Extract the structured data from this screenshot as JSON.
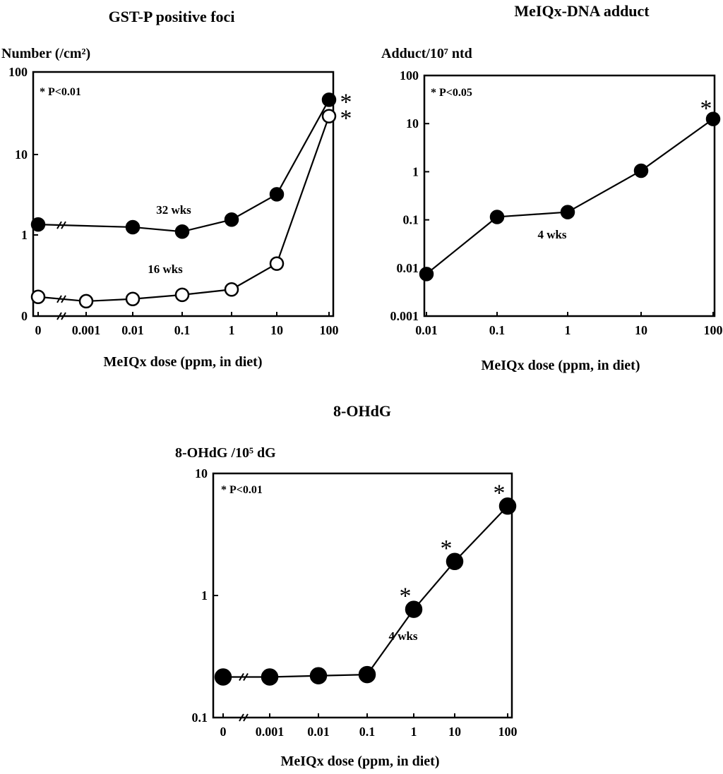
{
  "chart_data": [
    {
      "type": "line",
      "title": "GST-P positive foci",
      "ylabel": "Number (/cm²)",
      "xlabel": "MeIQx dose (ppm, in diet)",
      "yscale": "log",
      "x_tick_labels": [
        "0",
        "0.001",
        "0.01",
        "0.1",
        "1",
        "10",
        "100"
      ],
      "y_tick_labels": [
        "0",
        "1",
        "10",
        "100"
      ],
      "annotation": "* P<0.01",
      "axis_break": true,
      "x": [
        "0",
        "0.001",
        "0.01",
        "0.1",
        "1",
        "10",
        "100"
      ],
      "series": [
        {
          "name": "32 wks",
          "marker": "filled circle",
          "x": [
            "0",
            "0.01",
            "0.1",
            "1",
            "10",
            "100"
          ],
          "values": [
            1.35,
            1.25,
            1.1,
            1.55,
            3.2,
            48
          ],
          "significant": [
            false,
            false,
            false,
            false,
            false,
            true
          ]
        },
        {
          "name": "16 wks",
          "marker": "open circle",
          "x": [
            "0",
            "0.001",
            "0.01",
            "0.1",
            "1",
            "10",
            "100"
          ],
          "values": [
            0.17,
            0.15,
            0.16,
            0.18,
            0.21,
            0.44,
            30
          ],
          "significant": [
            false,
            false,
            false,
            false,
            false,
            false,
            true
          ]
        }
      ]
    },
    {
      "type": "line",
      "title": "MeIQx-DNA adduct",
      "ylabel": "Adduct/10⁷ ntd",
      "xlabel": "MeIQx dose (ppm, in diet)",
      "yscale": "log",
      "ylim": [
        0.001,
        100
      ],
      "x_tick_labels": [
        "0.01",
        "0.1",
        "1",
        "10",
        "100"
      ],
      "y_tick_labels": [
        "0.001",
        "0.01",
        "0.1",
        "1",
        "10",
        "100"
      ],
      "annotation": "* P<0.05",
      "series": [
        {
          "name": "4 wks",
          "marker": "filled circle",
          "x": [
            "0.01",
            "0.1",
            "1",
            "10",
            "100"
          ],
          "values": [
            0.0075,
            0.115,
            0.145,
            1.05,
            12.5
          ],
          "significant": [
            false,
            false,
            false,
            false,
            true
          ]
        }
      ]
    },
    {
      "type": "line",
      "title": "8-OHdG",
      "ylabel": "8-OHdG /10⁵ dG",
      "xlabel": "MeIQx dose (ppm, in diet)",
      "yscale": "log",
      "ylim": [
        0.1,
        10
      ],
      "x_tick_labels": [
        "0",
        "0.001",
        "0.01",
        "0.1",
        "1",
        "10",
        "100"
      ],
      "y_tick_labels": [
        "0.1",
        "1",
        "10"
      ],
      "annotation": "* P<0.01",
      "axis_break": true,
      "series": [
        {
          "name": "4 wks",
          "marker": "filled circle",
          "x": [
            "0",
            "0.001",
            "0.01",
            "0.1",
            "1",
            "10",
            "100"
          ],
          "values": [
            0.215,
            0.215,
            0.22,
            0.225,
            0.77,
            1.9,
            5.4
          ],
          "significant": [
            false,
            false,
            false,
            false,
            true,
            true,
            true
          ]
        }
      ]
    }
  ]
}
